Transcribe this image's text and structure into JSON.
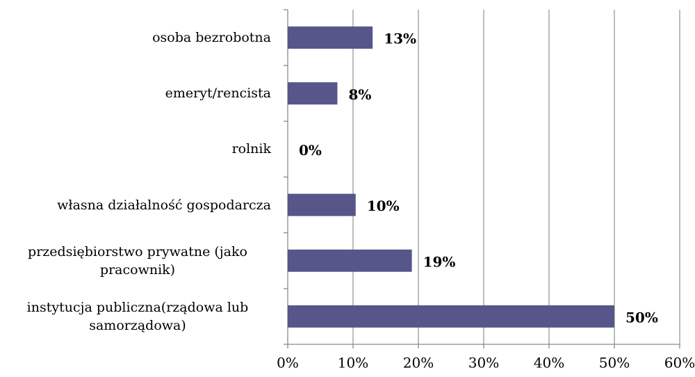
{
  "chart_data": {
    "type": "hbar",
    "categories": [
      "osoba bezrobotna",
      "emeryt/rencista",
      "rolnik",
      "własna działalność gospodarcza",
      "przedsiębiorstwo prywatne (jako pracownik)",
      "instytucja publiczna(rządowa lub samorządowa)"
    ],
    "values": [
      13,
      7.6,
      0,
      10.4,
      19,
      50
    ],
    "value_labels": [
      "13%",
      "8%",
      "0%",
      "10%",
      "19%",
      "50%"
    ],
    "color": "#56568a",
    "xlim": [
      0,
      60
    ],
    "xticks": [
      {
        "value": 0,
        "label": "0%"
      },
      {
        "value": 10,
        "label": "10%"
      },
      {
        "value": 20,
        "label": "20%"
      },
      {
        "value": 30,
        "label": "30%"
      },
      {
        "value": 40,
        "label": "40%"
      },
      {
        "value": 50,
        "label": "50%"
      },
      {
        "value": 60,
        "label": "60%"
      }
    ],
    "grid": true
  }
}
